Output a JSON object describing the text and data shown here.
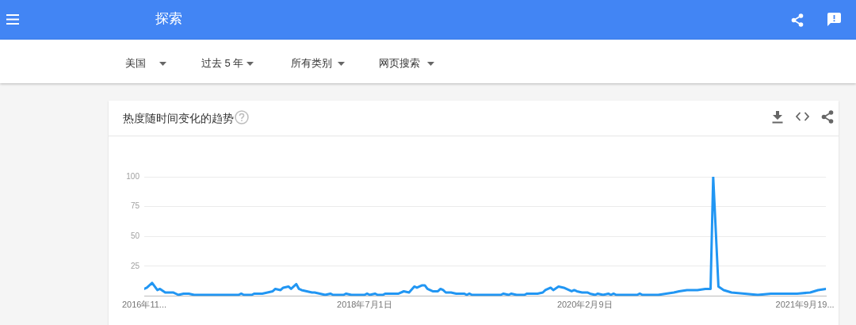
{
  "chart_data": {
    "type": "line",
    "title": "热度随时间变化的趋势",
    "annotations": [
      "探索",
      "美国",
      "过去 5 年",
      "所有类别",
      "网页搜索"
    ],
    "x": [
      "2016-11-20",
      "2016-11-27",
      "2016-12-11",
      "2016-12-25",
      "2017-01-01",
      "2017-01-15",
      "2017-02-05",
      "2017-02-19",
      "2017-03-05",
      "2017-03-19",
      "2017-04-02",
      "2017-07-30",
      "2017-08-06",
      "2017-08-13",
      "2017-09-03",
      "2017-09-10",
      "2017-10-01",
      "2017-10-15",
      "2017-10-29",
      "2017-11-05",
      "2017-11-19",
      "2017-11-26",
      "2017-12-10",
      "2017-12-17",
      "2017-12-31",
      "2018-01-07",
      "2018-01-14",
      "2018-01-28",
      "2018-02-11",
      "2018-02-18",
      "2018-03-04",
      "2018-03-18",
      "2018-04-01",
      "2018-04-08",
      "2018-05-06",
      "2018-05-13",
      "2018-05-27",
      "2018-07-01",
      "2018-07-08",
      "2018-07-15",
      "2018-07-29",
      "2018-08-05",
      "2018-08-19",
      "2018-08-26",
      "2018-09-30",
      "2018-10-14",
      "2018-10-28",
      "2018-11-11",
      "2018-11-18",
      "2018-12-02",
      "2018-12-09",
      "2018-12-16",
      "2018-12-30",
      "2019-01-13",
      "2019-01-20",
      "2019-01-27",
      "2019-02-03",
      "2019-02-17",
      "2019-03-03",
      "2019-03-24",
      "2019-03-31",
      "2019-04-07",
      "2019-04-14",
      "2019-06-30",
      "2019-07-07",
      "2019-07-21",
      "2019-07-28",
      "2019-08-11",
      "2019-09-01",
      "2019-09-08",
      "2019-10-06",
      "2019-10-20",
      "2019-10-27",
      "2019-11-10",
      "2019-11-17",
      "2019-12-01",
      "2019-12-15",
      "2019-12-22",
      "2020-01-05",
      "2020-01-12",
      "2020-01-19",
      "2020-02-02",
      "2020-02-16",
      "2020-02-23",
      "2020-03-08",
      "2020-03-15",
      "2020-03-29",
      "2020-04-12",
      "2020-04-19",
      "2020-04-26",
      "2020-05-03",
      "2020-06-28",
      "2020-07-05",
      "2020-07-12",
      "2020-08-23",
      "2020-09-13",
      "2020-10-04",
      "2020-10-18",
      "2020-11-08",
      "2020-12-06",
      "2020-12-27",
      "2021-01-10",
      "2021-01-17",
      "2021-01-31",
      "2021-02-14",
      "2021-03-07",
      "2021-04-11",
      "2021-05-16",
      "2021-06-20",
      "2021-07-18",
      "2021-08-29",
      "2021-10-03",
      "2021-10-24",
      "2021-11-14"
    ],
    "values": [
      6,
      7,
      11,
      5,
      6,
      3,
      3,
      1,
      2,
      2,
      1,
      1,
      2,
      1,
      1,
      2,
      2,
      3,
      4,
      6,
      5,
      7,
      8,
      6,
      10,
      6,
      5,
      4,
      3,
      3,
      2,
      1,
      2,
      1,
      1,
      2,
      1,
      1,
      2,
      1,
      2,
      1,
      1,
      2,
      2,
      4,
      3,
      8,
      7,
      9,
      9,
      6,
      4,
      4,
      6,
      5,
      3,
      3,
      2,
      2,
      1,
      2,
      1,
      1,
      2,
      1,
      2,
      1,
      1,
      2,
      2,
      3,
      5,
      7,
      5,
      8,
      7,
      6,
      4,
      5,
      4,
      3,
      3,
      2,
      1,
      2,
      1,
      2,
      1,
      2,
      1,
      1,
      2,
      1,
      1,
      2,
      3,
      4,
      5,
      5,
      6,
      6,
      100,
      8,
      5,
      3,
      2,
      1,
      2,
      2,
      2,
      3,
      5,
      6
    ],
    "color": "#2196f3",
    "xlim": [
      "2016-11-20",
      "2021-11-14"
    ],
    "xticks": [
      {
        "value": "2016-11-20",
        "label": "2016年11..."
      },
      {
        "value": "2018-07-01",
        "label": "2018年7月1日"
      },
      {
        "value": "2020-02-09",
        "label": "2020年2月9日"
      },
      {
        "value": "2021-09-19",
        "label": "2021年9月19..."
      }
    ],
    "ylim": [
      0,
      100
    ],
    "yticks": [
      25,
      50,
      75,
      100
    ],
    "grid": "y"
  }
}
